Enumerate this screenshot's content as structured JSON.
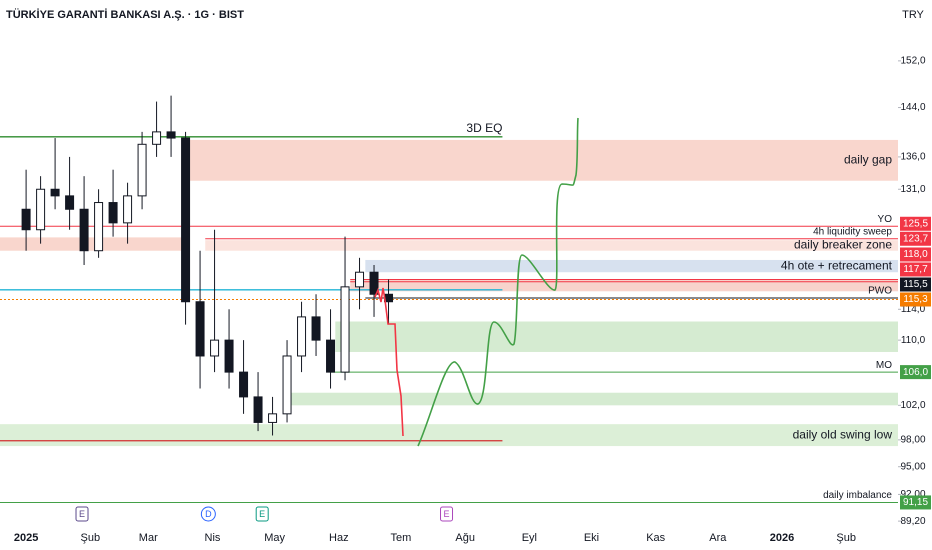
{
  "chart_data": {
    "type": "candlestick",
    "title": "TÜRKİYE GARANTİ BANKASI A.Ş. · 1G · BIST",
    "currency": "TRY",
    "log_scale": true,
    "ylim": [
      88.8,
      163.1
    ],
    "yticks": [
      {
        "value": 152,
        "label": "152,0"
      },
      {
        "value": 144,
        "label": "144,0"
      },
      {
        "value": 136,
        "label": "136,0"
      },
      {
        "value": 131,
        "label": "131,0"
      },
      {
        "value": 114,
        "label": "114,0"
      },
      {
        "value": 110,
        "label": "110,0"
      },
      {
        "value": 102,
        "label": "102,0"
      },
      {
        "value": 98,
        "label": "98,00"
      },
      {
        "value": 95,
        "label": "95,00"
      },
      {
        "value": 92,
        "label": "92,00"
      },
      {
        "value": 89.2,
        "label": "89,20"
      }
    ],
    "xlim": [
      -12.6,
      421
    ],
    "xticks": [
      {
        "value": 0,
        "label": "2025"
      },
      {
        "value": 31,
        "label": "Şub"
      },
      {
        "value": 59,
        "label": "Mar"
      },
      {
        "value": 90,
        "label": "Nis"
      },
      {
        "value": 120,
        "label": "May"
      },
      {
        "value": 151,
        "label": "Haz"
      },
      {
        "value": 181,
        "label": "Tem"
      },
      {
        "value": 212,
        "label": "Ağu"
      },
      {
        "value": 243,
        "label": "Eyl"
      },
      {
        "value": 273,
        "label": "Eki"
      },
      {
        "value": 304,
        "label": "Kas"
      },
      {
        "value": 334,
        "label": "Ara"
      },
      {
        "value": 365,
        "label": "2026"
      },
      {
        "value": 396,
        "label": "Şub"
      }
    ],
    "candles": [
      {
        "x": 0,
        "o": 128,
        "h": 134,
        "l": 122,
        "c": 125
      },
      {
        "x": 7,
        "o": 125,
        "h": 133,
        "l": 123,
        "c": 131
      },
      {
        "x": 14,
        "o": 131,
        "h": 139,
        "l": 128,
        "c": 130
      },
      {
        "x": 21,
        "o": 130,
        "h": 136,
        "l": 125,
        "c": 128
      },
      {
        "x": 28,
        "o": 128,
        "h": 133,
        "l": 120,
        "c": 122
      },
      {
        "x": 35,
        "o": 122,
        "h": 131,
        "l": 121,
        "c": 129
      },
      {
        "x": 42,
        "o": 129,
        "h": 134,
        "l": 124,
        "c": 126
      },
      {
        "x": 49,
        "o": 126,
        "h": 132,
        "l": 123,
        "c": 130
      },
      {
        "x": 56,
        "o": 130,
        "h": 140,
        "l": 128,
        "c": 138
      },
      {
        "x": 63,
        "o": 138,
        "h": 145,
        "l": 136,
        "c": 140
      },
      {
        "x": 70,
        "o": 140,
        "h": 146,
        "l": 136,
        "c": 139
      },
      {
        "x": 77,
        "o": 139,
        "h": 140,
        "l": 112,
        "c": 115
      },
      {
        "x": 84,
        "o": 115,
        "h": 122,
        "l": 104,
        "c": 108
      },
      {
        "x": 91,
        "o": 108,
        "h": 125,
        "l": 106,
        "c": 110
      },
      {
        "x": 98,
        "o": 110,
        "h": 114,
        "l": 104,
        "c": 106
      },
      {
        "x": 105,
        "o": 106,
        "h": 110,
        "l": 101,
        "c": 103
      },
      {
        "x": 112,
        "o": 103,
        "h": 106,
        "l": 99,
        "c": 100
      },
      {
        "x": 119,
        "o": 100,
        "h": 103,
        "l": 98.5,
        "c": 101
      },
      {
        "x": 126,
        "o": 101,
        "h": 110,
        "l": 100,
        "c": 108
      },
      {
        "x": 133,
        "o": 108,
        "h": 115,
        "l": 106,
        "c": 113
      },
      {
        "x": 140,
        "o": 113,
        "h": 116,
        "l": 108,
        "c": 110
      },
      {
        "x": 147,
        "o": 110,
        "h": 114,
        "l": 104,
        "c": 106
      },
      {
        "x": 154,
        "o": 106,
        "h": 124,
        "l": 105,
        "c": 117
      },
      {
        "x": 161,
        "o": 117,
        "h": 121,
        "l": 114,
        "c": 119
      },
      {
        "x": 168,
        "o": 119,
        "h": 120,
        "l": 113,
        "c": 116
      },
      {
        "x": 175,
        "o": 116,
        "h": 118,
        "l": 112,
        "c": 115
      }
    ],
    "zones": [
      {
        "from": 76.8,
        "to": 421,
        "low": 132.3,
        "high": 138.7,
        "color": "#f9d6cd",
        "name": "daily gap"
      },
      {
        "from": -12.6,
        "to": 76.8,
        "low": 122,
        "high": 123.9,
        "color": "#f9d6cd"
      },
      {
        "from": 86.5,
        "to": 421,
        "low": 122,
        "high": 123.5,
        "color": "#fbe3dd",
        "name": "daily breaker zone"
      },
      {
        "from": 163.8,
        "to": 421,
        "low": 119,
        "high": 120.7,
        "color": "#d7e1ef",
        "name": "4h ote + retrecament"
      },
      {
        "from": 156.5,
        "to": 421,
        "low": 116.4,
        "high": 118,
        "color": "#f7d3cc"
      },
      {
        "from": 149.3,
        "to": 421,
        "low": 108.5,
        "high": 112.4,
        "color": "#d5ebd1"
      },
      {
        "from": 126,
        "to": 421,
        "low": 102,
        "high": 103.5,
        "color": "#d5ebd1"
      },
      {
        "from": -12.6,
        "to": 421,
        "low": 97.3,
        "high": 99.8,
        "color": "#dcefd7",
        "name": "daily old swing low"
      }
    ],
    "lines": [
      {
        "value": 139.2,
        "from": -12.6,
        "to": 230,
        "color": "#2e8b2e",
        "name": "3D EQ"
      },
      {
        "value": 116.6,
        "from": -12.6,
        "to": 230,
        "color": "#22b5d6"
      },
      {
        "value": 97.9,
        "from": -12.6,
        "to": 230,
        "color": "#d32f2f"
      }
    ],
    "levels": [
      {
        "value": 125.5,
        "value_label": "125,5",
        "from": -12.6,
        "color": "#f23645",
        "name": "YO"
      },
      {
        "value": 123.7,
        "value_label": "123,7",
        "from": 86.5,
        "color": "#f23645",
        "name": "4h liquidity sweep"
      },
      {
        "value": 118,
        "value_label": "118,0",
        "from": 156.5,
        "color": "#f23645"
      },
      {
        "value": 117.7,
        "value_label": "117,7",
        "from": 156.5,
        "color": "#f23645"
      },
      {
        "value": 115.5,
        "value_label": "115,5",
        "from": 163.8,
        "color": "#131722",
        "name": "PWO"
      },
      {
        "value": 115.3,
        "value_label": "115,3",
        "from": -12.6,
        "color": "#f57c00",
        "dashed": true
      },
      {
        "value": 106,
        "value_label": "106,0",
        "from": 147,
        "color": "#43a047",
        "name": "MO"
      },
      {
        "value": 91.15,
        "value_label": "91,15",
        "from": -12.6,
        "color": "#43a047",
        "name": "daily imbalance"
      }
    ],
    "events": [
      {
        "x": 27,
        "label": "E",
        "color": "#5b4a8b"
      },
      {
        "x": 88,
        "label": "D",
        "color": "#2962ff"
      },
      {
        "x": 114,
        "label": "E",
        "color": "#089981"
      },
      {
        "x": 203,
        "label": "E",
        "color": "#ab47bc"
      }
    ]
  }
}
